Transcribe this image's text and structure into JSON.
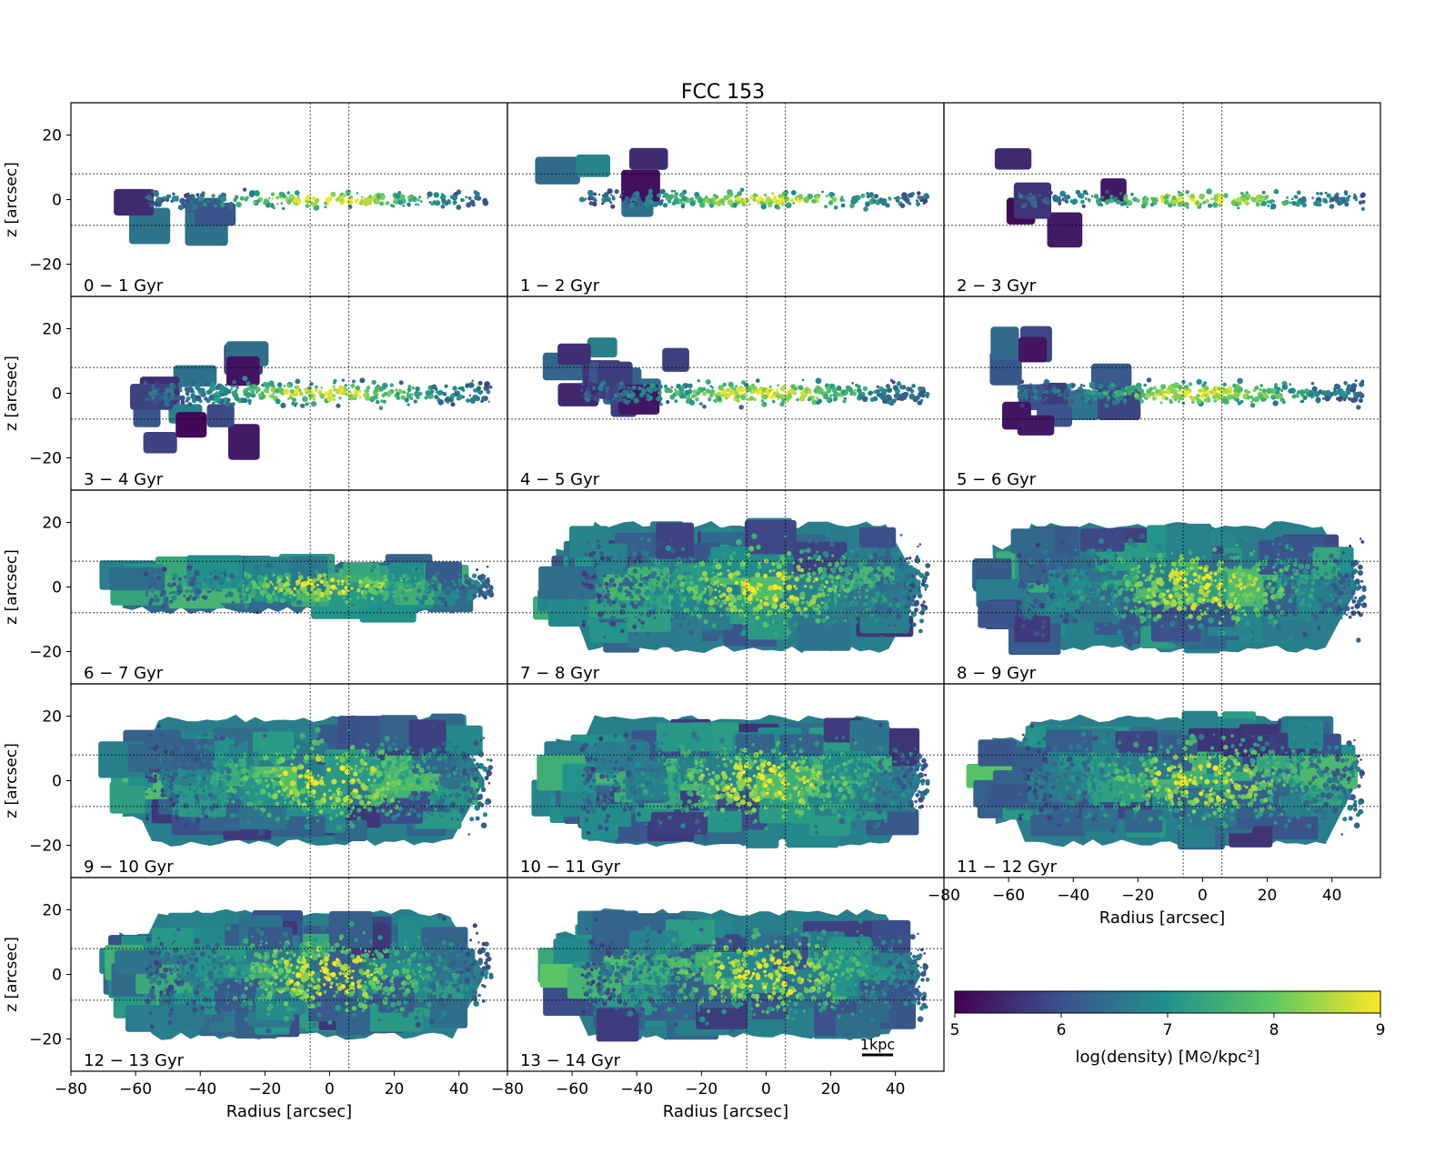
{
  "chart_data": {
    "type": "heatmap",
    "title": "FCC 153",
    "xlabel": "Radius [arcsec]",
    "ylabel": "z [arcsec]",
    "xlim": [
      -80,
      55
    ],
    "ylim": [
      -30,
      30
    ],
    "xticks": [
      -80,
      -60,
      -40,
      -20,
      0,
      20,
      40
    ],
    "xtick_labels": [
      "−80",
      "−60",
      "−40",
      "−20",
      "0",
      "20",
      "40"
    ],
    "yticks": [
      -20,
      0,
      20
    ],
    "ytick_labels": [
      "−20",
      "0",
      "20"
    ],
    "vertical_guides": [
      -6,
      6
    ],
    "horizontal_guides": [
      -8,
      8
    ],
    "scale_bar_label": "1kpc",
    "colorbar": {
      "label": "log(density) [M⊙/kpc²]",
      "min": 5,
      "max": 9,
      "ticks": [
        5,
        6,
        7,
        8,
        9
      ],
      "tick_labels": [
        "5",
        "6",
        "7",
        "8",
        "9"
      ],
      "colormap": "viridis",
      "stops": [
        "#440154",
        "#3b528b",
        "#21918c",
        "#5ec962",
        "#fde725"
      ]
    },
    "panels": [
      {
        "label": "0 − 1 Gyr",
        "stage": 0
      },
      {
        "label": "1 − 2 Gyr",
        "stage": 0
      },
      {
        "label": "2 − 3 Gyr",
        "stage": 0
      },
      {
        "label": "3 − 4 Gyr",
        "stage": 1
      },
      {
        "label": "4 − 5 Gyr",
        "stage": 1
      },
      {
        "label": "5 − 6 Gyr",
        "stage": 1
      },
      {
        "label": "6 − 7 Gyr",
        "stage": 2
      },
      {
        "label": "7 − 8 Gyr",
        "stage": 3
      },
      {
        "label": "8 − 9 Gyr",
        "stage": 3
      },
      {
        "label": "9 − 10 Gyr",
        "stage": 3
      },
      {
        "label": "10 − 11 Gyr",
        "stage": 3
      },
      {
        "label": "11 − 12 Gyr",
        "stage": 3
      },
      {
        "label": "12 − 13 Gyr",
        "stage": 3
      },
      {
        "label": "13 − 14 Gyr",
        "stage": 3
      }
    ]
  }
}
